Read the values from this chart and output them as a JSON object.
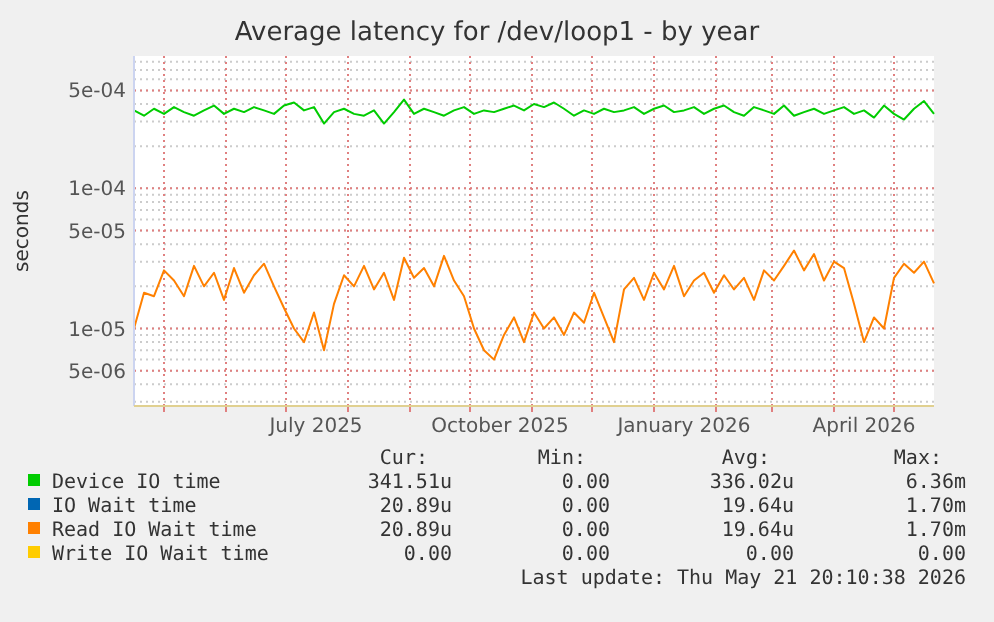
{
  "chart_data": {
    "type": "line",
    "title": "Average latency for /dev/loop1 - by year",
    "ylabel": "seconds",
    "log": "y",
    "grid": true,
    "legend": "bottom",
    "line_style": "solid",
    "xlim": [
      "2025-04-16",
      "2026-05-21"
    ],
    "xticks": [
      {
        "value": "2025-07-16",
        "label": "July 2025"
      },
      {
        "value": "2025-10-16",
        "label": "October 2025"
      },
      {
        "value": "2026-01-16",
        "label": "January 2026"
      },
      {
        "value": "2026-04-16",
        "label": "April 2026"
      }
    ],
    "ylim": [
      2.8e-06,
      0.00088
    ],
    "yticks": [
      {
        "value": 5e-06,
        "label": "5e-06"
      },
      {
        "value": 1e-05,
        "label": "1e-05"
      },
      {
        "value": 5e-05,
        "label": "5e-05"
      },
      {
        "value": 0.0001,
        "label": "1e-04"
      },
      {
        "value": 0.0005,
        "label": "5e-04"
      }
    ],
    "x": [
      "2025-04-16",
      "2025-04-21",
      "2025-04-26",
      "2025-05-01",
      "2025-05-06",
      "2025-05-11",
      "2025-05-16",
      "2025-05-21",
      "2025-05-26",
      "2025-05-31",
      "2025-06-05",
      "2025-06-10",
      "2025-06-15",
      "2025-06-20",
      "2025-06-25",
      "2025-06-30",
      "2025-07-05",
      "2025-07-10",
      "2025-07-15",
      "2025-07-20",
      "2025-07-25",
      "2025-07-30",
      "2025-08-04",
      "2025-08-09",
      "2025-08-14",
      "2025-08-19",
      "2025-08-24",
      "2025-08-29",
      "2025-09-03",
      "2025-09-08",
      "2025-09-13",
      "2025-09-18",
      "2025-09-23",
      "2025-09-28",
      "2025-10-03",
      "2025-10-08",
      "2025-10-13",
      "2025-10-18",
      "2025-10-23",
      "2025-10-28",
      "2025-11-02",
      "2025-11-07",
      "2025-11-12",
      "2025-11-17",
      "2025-11-22",
      "2025-11-27",
      "2025-12-02",
      "2025-12-07",
      "2025-12-12",
      "2025-12-17",
      "2025-12-22",
      "2025-12-27",
      "2026-01-01",
      "2026-01-06",
      "2026-01-11",
      "2026-01-16",
      "2026-01-21",
      "2026-01-26",
      "2026-01-31",
      "2026-02-05",
      "2026-02-10",
      "2026-02-15",
      "2026-02-20",
      "2026-02-25",
      "2026-03-02",
      "2026-03-07",
      "2026-03-12",
      "2026-03-17",
      "2026-03-22",
      "2026-03-27",
      "2026-04-01",
      "2026-04-06",
      "2026-04-11",
      "2026-04-16",
      "2026-04-21",
      "2026-04-26",
      "2026-05-01",
      "2026-05-06",
      "2026-05-11",
      "2026-05-16",
      "2026-05-21"
    ],
    "series": [
      {
        "name": "Device IO time",
        "color": "#00cc00",
        "values": [
          0.00036,
          0.00033,
          0.00037,
          0.00034,
          0.00038,
          0.00035,
          0.00033,
          0.00036,
          0.00039,
          0.00034,
          0.00037,
          0.00035,
          0.00038,
          0.00036,
          0.00034,
          0.00039,
          0.00041,
          0.00036,
          0.00038,
          0.00029,
          0.00035,
          0.00037,
          0.00034,
          0.00033,
          0.00036,
          0.00029,
          0.00035,
          0.00043,
          0.00034,
          0.00037,
          0.00035,
          0.00033,
          0.00036,
          0.00038,
          0.00034,
          0.00036,
          0.00035,
          0.00037,
          0.00039,
          0.00036,
          0.0004,
          0.00038,
          0.00041,
          0.00037,
          0.00033,
          0.00036,
          0.00034,
          0.00037,
          0.00035,
          0.00036,
          0.00038,
          0.00034,
          0.00037,
          0.00039,
          0.00035,
          0.00036,
          0.00038,
          0.00034,
          0.00037,
          0.00039,
          0.00035,
          0.00033,
          0.00038,
          0.00036,
          0.00034,
          0.00039,
          0.00033,
          0.00035,
          0.00037,
          0.00034,
          0.00036,
          0.00038,
          0.00034,
          0.00036,
          0.00032,
          0.00039,
          0.00034,
          0.00031,
          0.00037,
          0.00042,
          0.00034
        ]
      },
      {
        "name": "IO Wait time",
        "color": "#0066b3",
        "values": [
          null,
          null,
          null,
          null,
          null,
          null,
          null,
          null,
          null,
          null,
          null,
          null,
          null,
          null,
          null,
          null,
          null,
          null,
          null,
          null,
          null,
          null,
          null,
          null,
          null,
          null,
          null,
          null,
          null,
          null,
          null,
          null,
          null,
          null,
          null,
          null,
          null,
          null,
          null,
          null,
          null,
          null,
          null,
          null,
          null,
          null,
          null,
          null,
          null,
          null,
          null,
          null,
          null,
          null,
          null,
          null,
          null,
          null,
          null,
          null,
          null,
          null,
          null,
          null,
          null,
          null,
          null,
          null,
          null,
          null,
          null,
          null,
          null,
          null,
          null,
          null,
          null,
          null,
          null,
          null,
          null
        ]
      },
      {
        "name": "Read IO Wait time",
        "color": "#ff8000",
        "values": [
          1e-05,
          1.8e-05,
          1.7e-05,
          2.6e-05,
          2.2e-05,
          1.7e-05,
          2.8e-05,
          2e-05,
          2.5e-05,
          1.6e-05,
          2.7e-05,
          1.8e-05,
          2.4e-05,
          2.9e-05,
          2e-05,
          1.4e-05,
          1e-05,
          8e-06,
          1.3e-05,
          7e-06,
          1.5e-05,
          2.4e-05,
          2e-05,
          2.8e-05,
          1.9e-05,
          2.5e-05,
          1.6e-05,
          3.2e-05,
          2.3e-05,
          2.7e-05,
          2e-05,
          3.3e-05,
          2.2e-05,
          1.7e-05,
          1e-05,
          7e-06,
          6e-06,
          9e-06,
          1.2e-05,
          8e-06,
          1.3e-05,
          1e-05,
          1.2e-05,
          9e-06,
          1.3e-05,
          1.1e-05,
          1.8e-05,
          1.2e-05,
          8e-06,
          1.9e-05,
          2.3e-05,
          1.6e-05,
          2.5e-05,
          1.9e-05,
          2.8e-05,
          1.7e-05,
          2.2e-05,
          2.5e-05,
          1.8e-05,
          2.4e-05,
          1.9e-05,
          2.3e-05,
          1.6e-05,
          2.6e-05,
          2.2e-05,
          2.8e-05,
          3.6e-05,
          2.6e-05,
          3.4e-05,
          2.2e-05,
          3e-05,
          2.7e-05,
          1.5e-05,
          8e-06,
          1.2e-05,
          1e-05,
          2.3e-05,
          2.9e-05,
          2.5e-05,
          3e-05,
          2.1e-05
        ]
      },
      {
        "name": "Write IO Wait time",
        "color": "#ffcc00",
        "values": [
          null,
          null,
          null,
          null,
          null,
          null,
          null,
          null,
          null,
          null,
          null,
          null,
          null,
          null,
          null,
          null,
          null,
          null,
          null,
          null,
          null,
          null,
          null,
          null,
          null,
          null,
          null,
          null,
          null,
          null,
          null,
          null,
          null,
          null,
          null,
          null,
          null,
          null,
          null,
          null,
          null,
          null,
          null,
          null,
          null,
          null,
          null,
          null,
          null,
          null,
          null,
          null,
          null,
          null,
          null,
          null,
          null,
          null,
          null,
          null,
          null,
          null,
          null,
          null,
          null,
          null,
          null,
          null,
          null,
          null,
          null,
          null,
          null,
          null,
          null,
          null,
          null,
          null,
          null,
          null,
          null
        ]
      }
    ],
    "annotations": [
      "Cur:",
      "Min:",
      "Avg:",
      "Max:",
      "341.51u",
      "0.00",
      "336.02u",
      "6.36m",
      "20.89u",
      "0.00",
      "19.64u",
      "1.70m",
      "20.89u",
      "0.00",
      "19.64u",
      "1.70m",
      "0.00",
      "0.00",
      "0.00",
      "0.00",
      "Last update: Thu May 21 20:10:38 2026"
    ]
  }
}
